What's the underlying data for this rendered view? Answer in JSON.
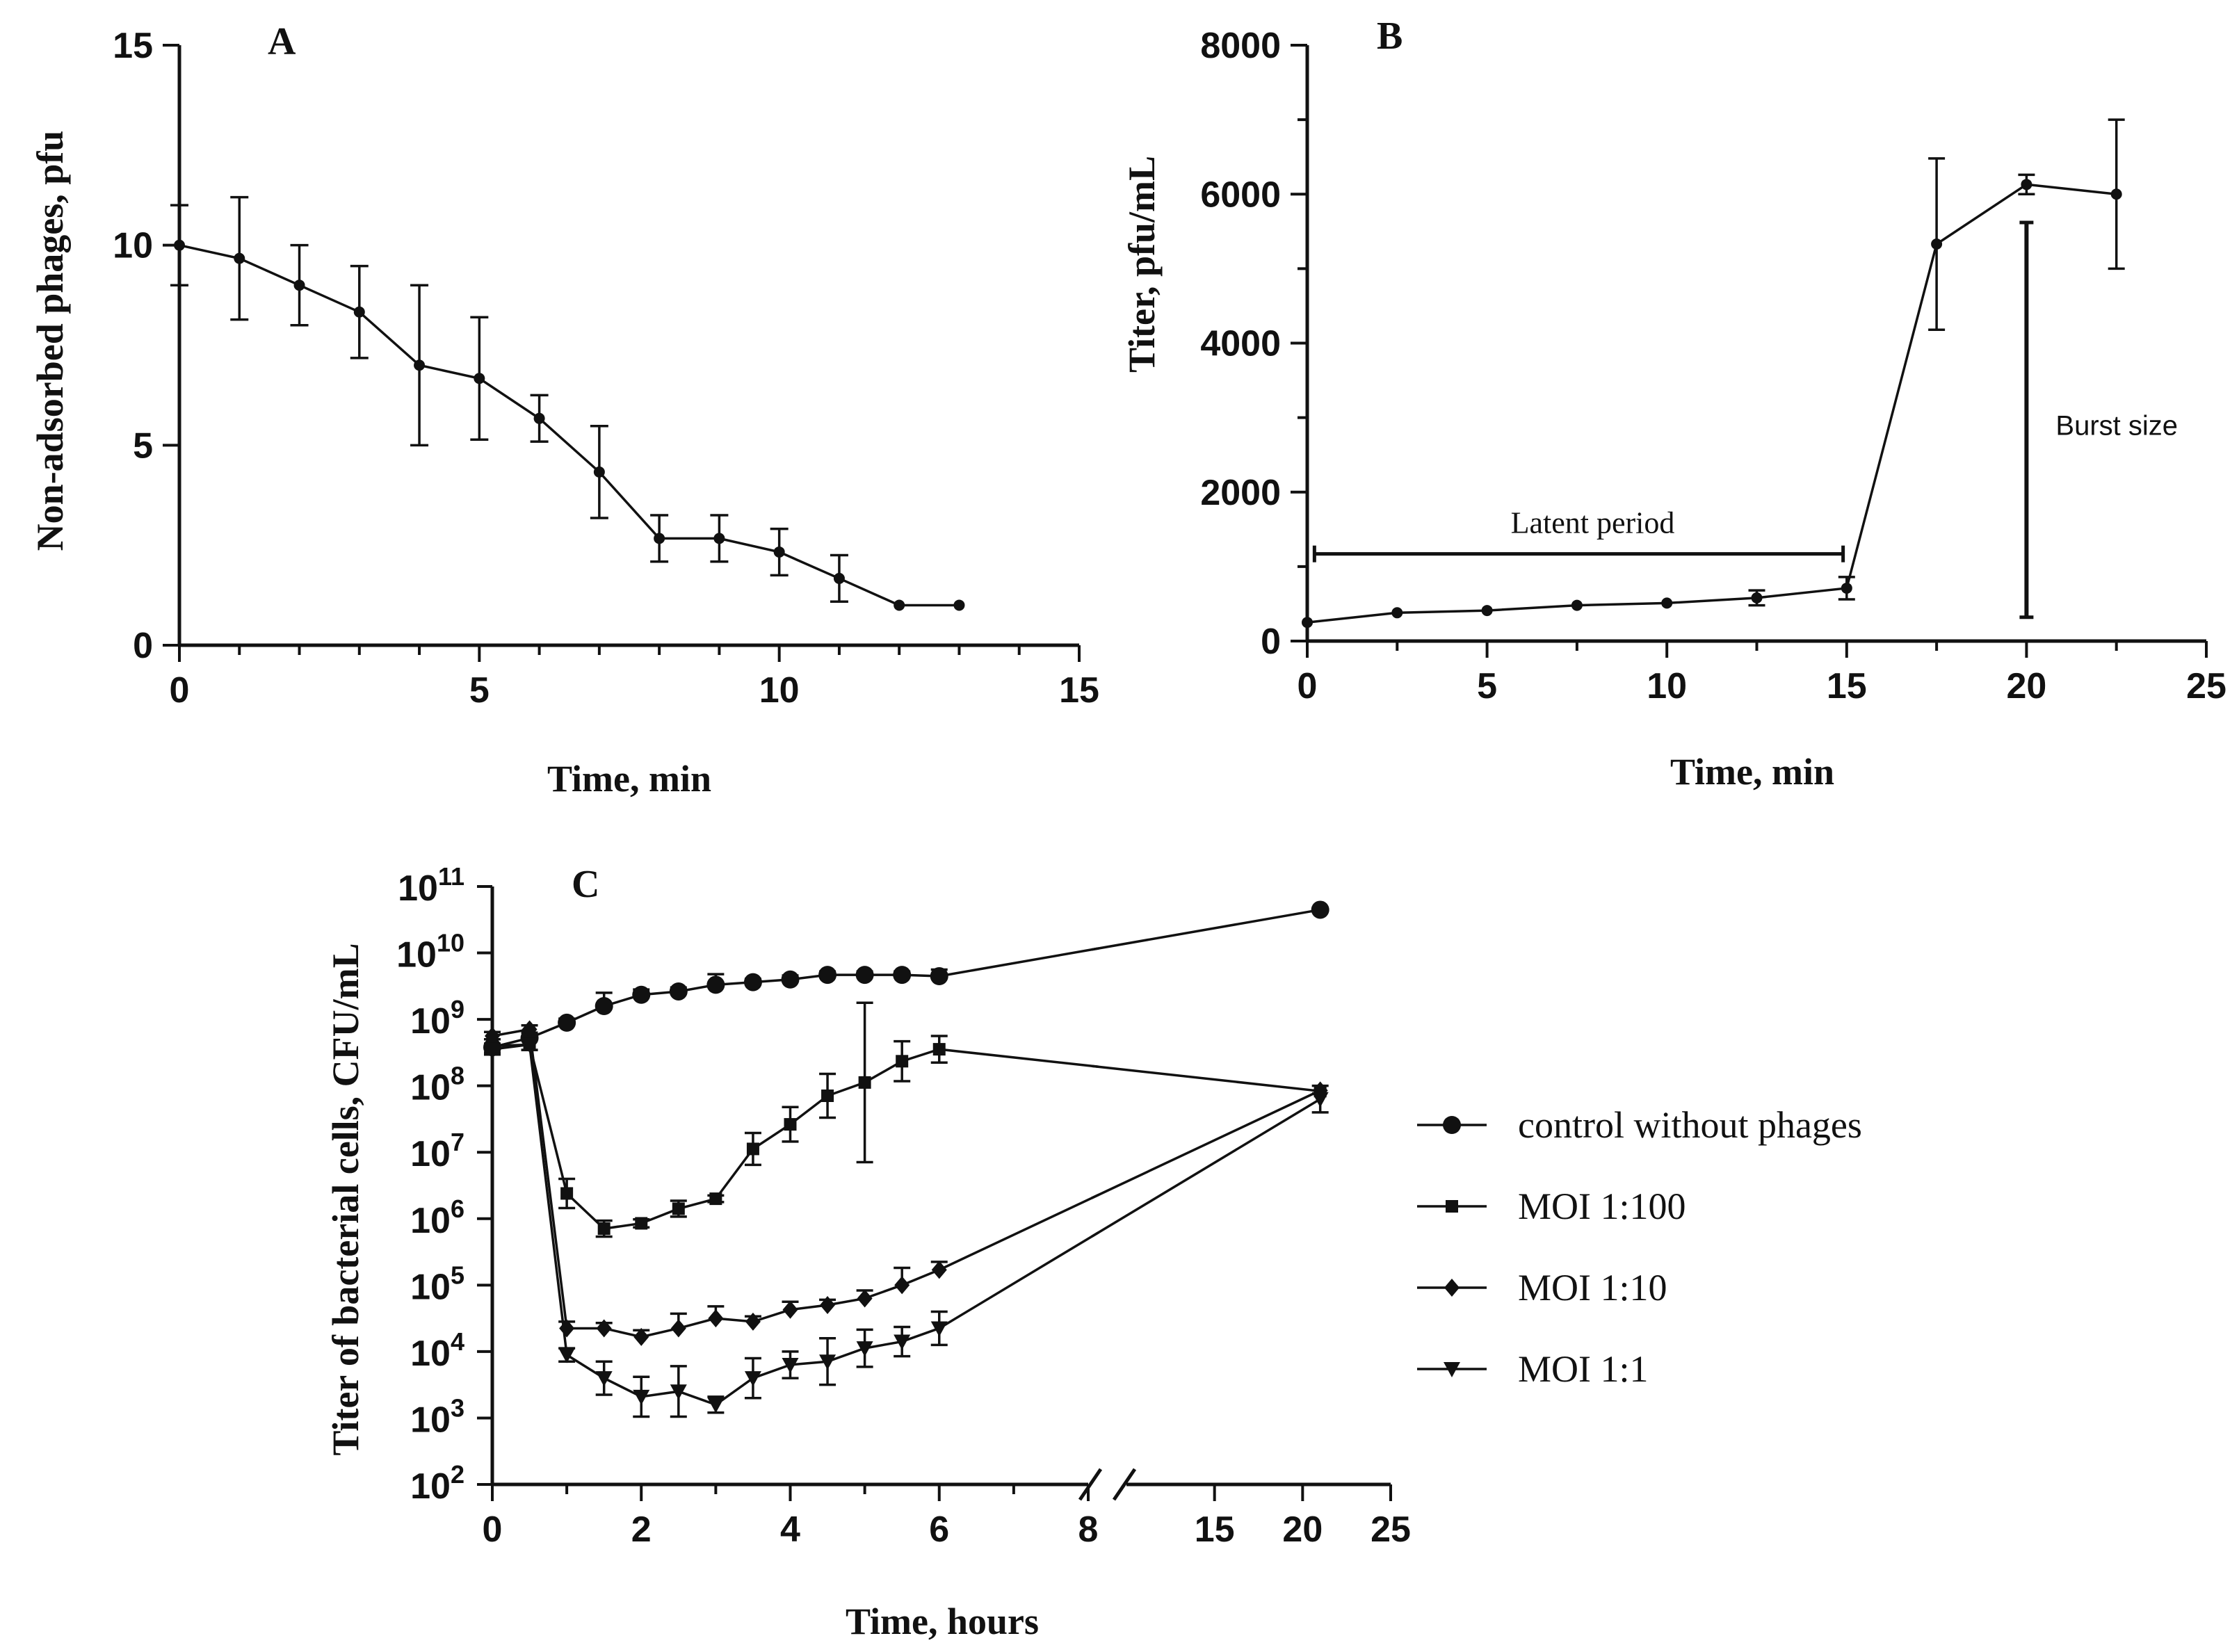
{
  "chart_data": [
    {
      "panel": "A",
      "type": "line",
      "xlabel": "Time, min",
      "ylabel": "Non-adsorbed phages, pfu",
      "xlim": [
        0,
        15
      ],
      "ylim": [
        0,
        15
      ],
      "xticks": [
        0,
        5,
        10,
        15
      ],
      "yticks": [
        0,
        5,
        10,
        15
      ],
      "series": [
        {
          "name": "non-adsorbed phages",
          "x": [
            0,
            1,
            2,
            3,
            4,
            5,
            6,
            7,
            8,
            9,
            10,
            11,
            12,
            13
          ],
          "y": [
            10,
            9.67,
            9.0,
            8.33,
            7.0,
            6.67,
            5.67,
            4.33,
            2.67,
            2.67,
            2.33,
            1.67,
            1.0,
            1.0
          ],
          "err": [
            1.0,
            1.53,
            1.0,
            1.15,
            2.0,
            1.53,
            0.58,
            1.15,
            0.58,
            0.58,
            0.58,
            0.58,
            0,
            0
          ]
        }
      ]
    },
    {
      "panel": "B",
      "type": "line",
      "xlabel": "Time, min",
      "ylabel": "Titer, pfu/mL",
      "xlim": [
        0,
        25
      ],
      "ylim": [
        0,
        8000
      ],
      "xticks": [
        0,
        5,
        10,
        15,
        20,
        25
      ],
      "yticks": [
        0,
        2000,
        4000,
        6000,
        8000
      ],
      "series": [
        {
          "name": "titer",
          "x": [
            0,
            2.5,
            5,
            7.5,
            10,
            12.5,
            15,
            17.5,
            20,
            22.5
          ],
          "y": [
            250,
            380,
            410,
            480,
            510,
            580,
            710,
            5330,
            6130,
            6000
          ],
          "err": [
            0,
            0,
            0,
            0,
            0,
            100,
            150,
            1150,
            130,
            1000
          ]
        }
      ],
      "annotations": {
        "latent": {
          "label": "Latent period",
          "x_from": 0.2,
          "x_to": 14.9,
          "y": 1170
        },
        "burst": {
          "label": "Burst size",
          "x": 20,
          "y_from": 320,
          "y_to": 5620
        }
      }
    },
    {
      "panel": "C",
      "type": "line",
      "xlabel": "Time, hours",
      "ylabel": "Titer of bacterial cells, CFU/mL",
      "yscale": "log",
      "ylim_log10": [
        2,
        11
      ],
      "yticks_exponents": [
        2,
        3,
        4,
        5,
        6,
        7,
        8,
        9,
        10,
        11
      ],
      "ytick_base": "10",
      "x_axis_break": {
        "segment1": [
          0,
          8
        ],
        "segment2": [
          10,
          25
        ]
      },
      "xticks": [
        0,
        2,
        4,
        6,
        8,
        15,
        20,
        25
      ],
      "series": [
        {
          "name": "control without phages",
          "marker": "circle",
          "x": [
            0,
            0.5,
            1,
            1.5,
            2,
            2.5,
            3,
            3.5,
            4,
            4.5,
            5,
            5.5,
            6,
            21
          ],
          "log10y": [
            8.58,
            8.72,
            8.95,
            9.2,
            9.37,
            9.42,
            9.52,
            9.56,
            9.6,
            9.67,
            9.67,
            9.67,
            9.65,
            10.65
          ],
          "log10err": [
            0.12,
            0.08,
            0.06,
            0.2,
            0.08,
            0.06,
            0.16,
            0.05,
            0.06,
            0.05,
            0.05,
            0.05,
            0.1,
            0
          ]
        },
        {
          "name": "MOI 1:100",
          "marker": "square",
          "x": [
            0,
            0.5,
            1,
            1.5,
            2,
            2.5,
            3,
            3.5,
            4,
            4.5,
            5,
            5.5,
            6,
            21
          ],
          "log10y": [
            8.6,
            8.62,
            6.38,
            5.85,
            5.93,
            6.15,
            6.3,
            7.05,
            7.42,
            7.85,
            8.05,
            8.37,
            8.55,
            7.92
          ],
          "log10err": [
            0.1,
            0.08,
            0.22,
            0.12,
            0.06,
            0.12,
            0.05,
            0.24,
            0.26,
            0.33,
            1.2,
            0.3,
            0.2,
            0
          ]
        },
        {
          "name": "MOI 1:10",
          "marker": "diamond",
          "x": [
            0,
            0.5,
            1,
            1.5,
            2,
            2.5,
            3,
            3.5,
            4,
            4.5,
            5,
            5.5,
            6,
            21
          ],
          "log10y": [
            8.75,
            8.85,
            4.35,
            4.35,
            4.22,
            4.35,
            4.5,
            4.45,
            4.63,
            4.7,
            4.8,
            5.0,
            5.23,
            7.93
          ],
          "log10err": [
            0.06,
            0.06,
            0.1,
            0.08,
            0.1,
            0.22,
            0.18,
            0.08,
            0.12,
            0.08,
            0.12,
            0.26,
            0.12,
            0
          ]
        },
        {
          "name": "MOI 1:1",
          "marker": "triangle-down",
          "x": [
            0,
            0.5,
            1,
            1.5,
            2,
            2.5,
            3,
            3.5,
            4,
            4.5,
            5,
            5.5,
            6,
            21
          ],
          "log10y": [
            8.55,
            8.62,
            3.95,
            3.6,
            3.32,
            3.4,
            3.2,
            3.6,
            3.8,
            3.85,
            4.05,
            4.15,
            4.35,
            7.8
          ],
          "log10err": [
            0.08,
            0.08,
            0.1,
            0.25,
            0.3,
            0.38,
            0.12,
            0.3,
            0.2,
            0.35,
            0.28,
            0.22,
            0.25,
            0.2
          ]
        }
      ]
    }
  ]
}
